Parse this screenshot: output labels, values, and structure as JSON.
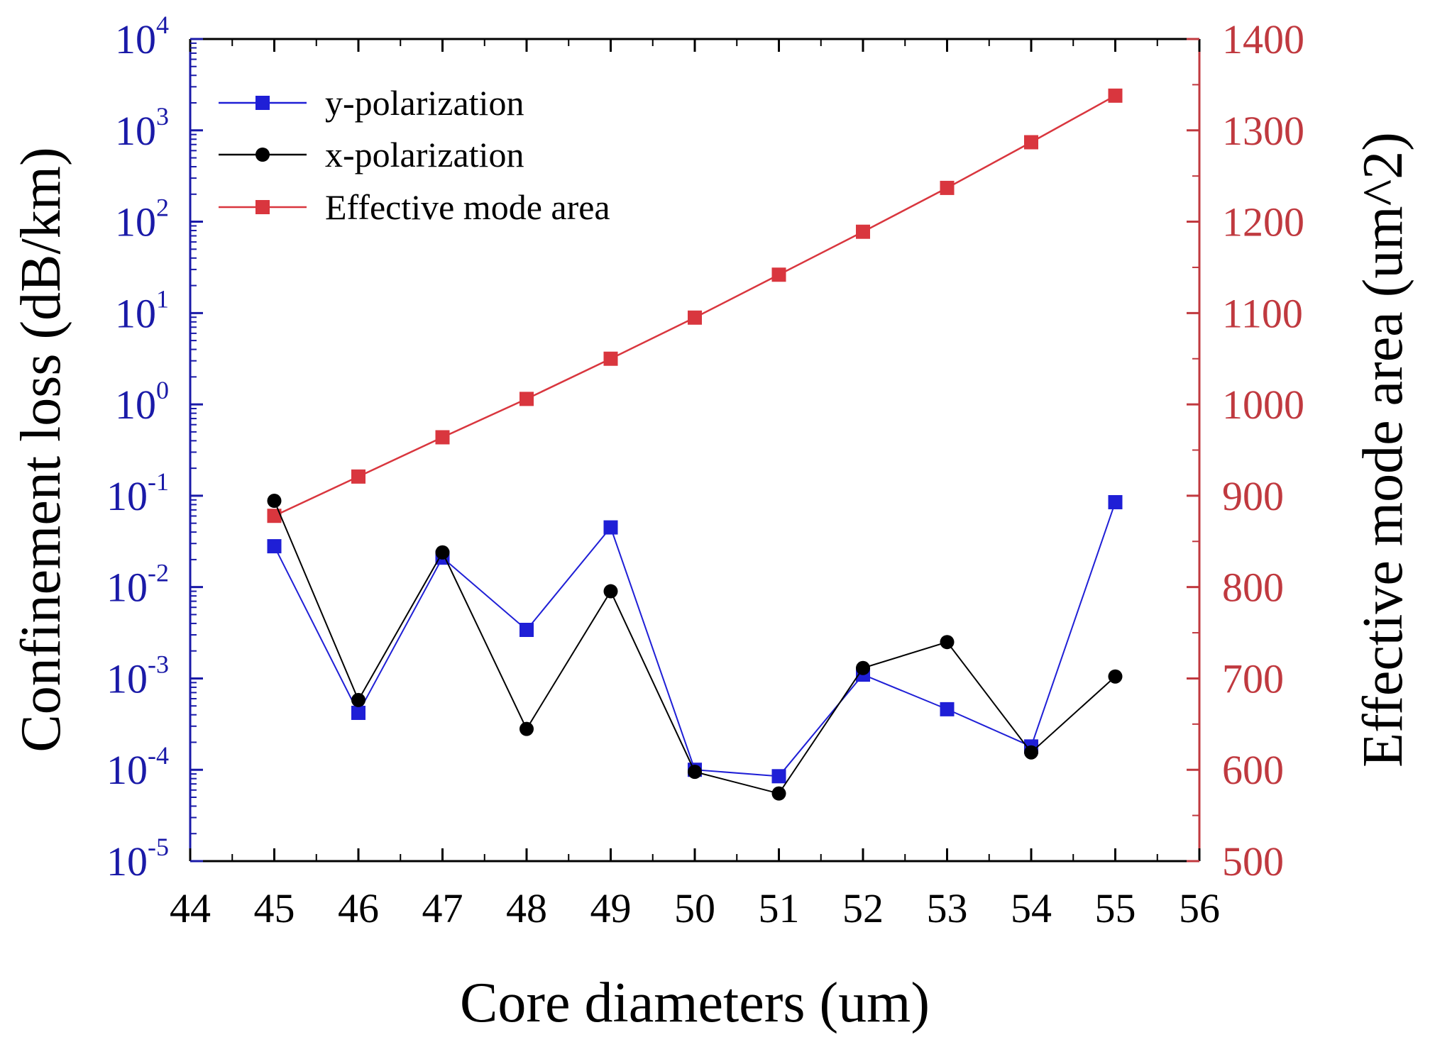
{
  "chart_data": {
    "type": "line",
    "xlabel": "Core diameters (um)",
    "ylabel_left": "Confinement loss (dB/km)",
    "ylabel_right": "Effective mode area (um^2)",
    "xlim": [
      44,
      56
    ],
    "x_ticks": [
      "44",
      "45",
      "46",
      "47",
      "48",
      "49",
      "50",
      "51",
      "52",
      "53",
      "54",
      "55",
      "56"
    ],
    "y_left_scale": "log",
    "y_left_lim_exp": [
      -5,
      4
    ],
    "y_left_ticks": [
      {
        "base": "10",
        "exp": "-5"
      },
      {
        "base": "10",
        "exp": "-4"
      },
      {
        "base": "10",
        "exp": "-3"
      },
      {
        "base": "10",
        "exp": "-2"
      },
      {
        "base": "10",
        "exp": "-1"
      },
      {
        "base": "10",
        "exp": "0"
      },
      {
        "base": "10",
        "exp": "1"
      },
      {
        "base": "10",
        "exp": "2"
      },
      {
        "base": "10",
        "exp": "3"
      },
      {
        "base": "10",
        "exp": "4"
      }
    ],
    "y_right_lim": [
      500,
      1400
    ],
    "y_right_ticks": [
      "500",
      "600",
      "700",
      "800",
      "900",
      "1000",
      "1100",
      "1200",
      "1300",
      "1400"
    ],
    "x": [
      45,
      46,
      47,
      48,
      49,
      50,
      51,
      52,
      53,
      54,
      55
    ],
    "series": [
      {
        "name": "y-polarization",
        "axis": "left",
        "marker": "square",
        "color": "#1f1fd6",
        "values": [
          0.028,
          0.00042,
          0.021,
          0.0034,
          0.045,
          0.0001,
          8.5e-05,
          0.0011,
          0.00046,
          0.00018,
          0.085
        ]
      },
      {
        "name": "x-polarization",
        "axis": "left",
        "marker": "circle",
        "color": "#000000",
        "values": [
          0.088,
          0.00058,
          0.024,
          0.00028,
          0.009,
          9.5e-05,
          5.5e-05,
          0.0013,
          0.0025,
          0.000155,
          0.00105
        ]
      },
      {
        "name": "Effective mode area",
        "axis": "right",
        "marker": "square",
        "color": "#d9363e",
        "values": [
          878,
          921,
          964,
          1006,
          1050,
          1095,
          1142,
          1189,
          1237,
          1287,
          1338
        ]
      }
    ],
    "legend": [
      "y-polarization",
      "x-polarization",
      "Effective mode area"
    ],
    "legend_position": "top-left",
    "colors": {
      "left_axis": "#1a1aa8",
      "right_axis": "#c0393f"
    }
  }
}
